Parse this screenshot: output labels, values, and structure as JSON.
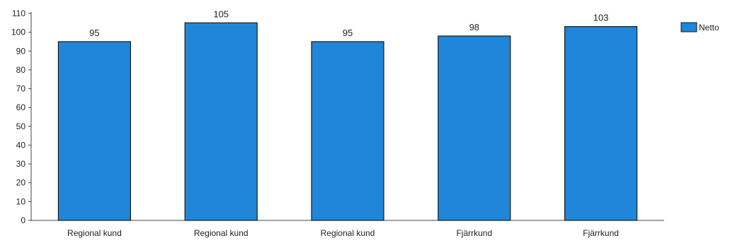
{
  "chart_data": {
    "type": "bar",
    "categories": [
      "Regional kund",
      "Regional kund",
      "Regional kund",
      "Fjärrkund",
      "Fjärrkund"
    ],
    "series": [
      {
        "name": "Netto",
        "values": [
          95,
          105,
          95,
          98,
          103
        ],
        "color": "#1f86d9"
      }
    ],
    "yticks": [
      0,
      10,
      20,
      30,
      40,
      50,
      60,
      70,
      80,
      90,
      100,
      110
    ],
    "ylim": [
      0,
      110
    ],
    "grid": false,
    "legend": "right",
    "data_labels": true
  }
}
